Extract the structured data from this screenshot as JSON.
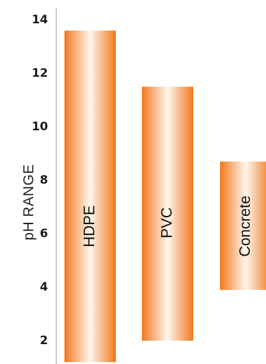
{
  "chart_data": {
    "type": "bar",
    "orientation": "vertical-range",
    "ylabel": "pH RANGE",
    "ylim": [
      1.2,
      14.6
    ],
    "yticks": [
      2,
      4,
      6,
      8,
      10,
      12,
      14
    ],
    "grid": false,
    "legend": "none",
    "bars": [
      {
        "label": "HDPE",
        "low": 1.2,
        "high": 13.6
      },
      {
        "label": "PVC",
        "low": 2.0,
        "high": 11.5
      },
      {
        "label": "Concrete",
        "low": 3.9,
        "high": 8.7
      }
    ],
    "colors": {
      "bar_edge": "#f0781e",
      "bar_center": "#fff7ef",
      "axis": "#bbbbbb"
    }
  }
}
